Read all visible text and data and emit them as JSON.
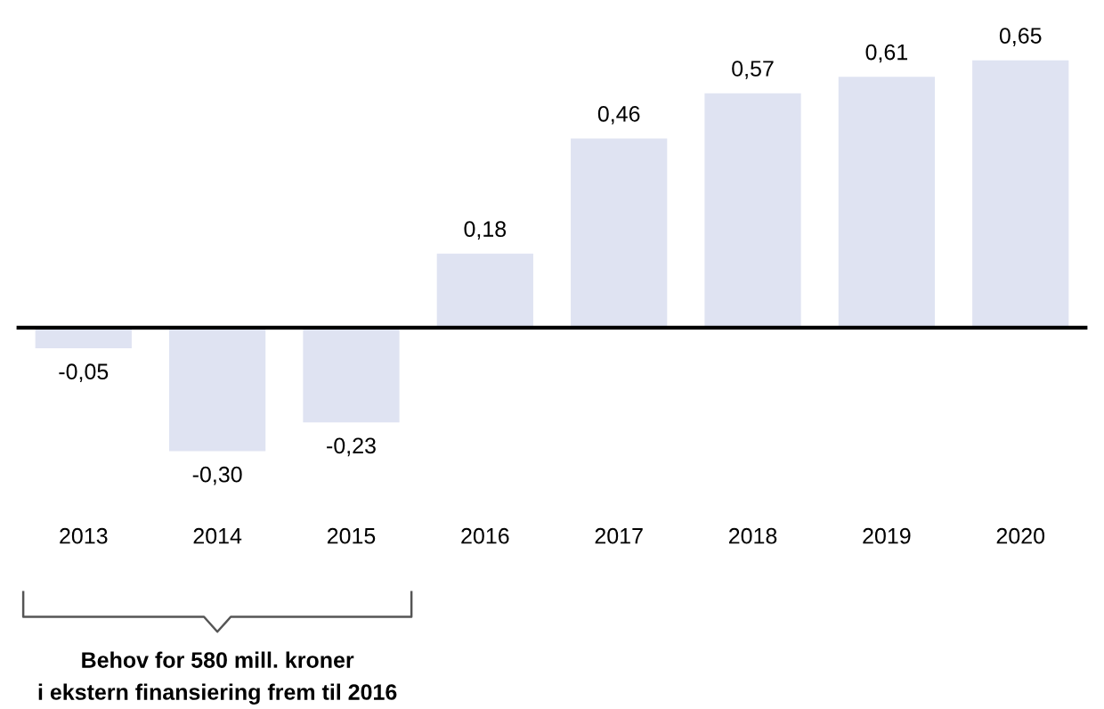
{
  "chart_data": {
    "type": "bar",
    "categories": [
      "2013",
      "2014",
      "2015",
      "2016",
      "2017",
      "2018",
      "2019",
      "2020"
    ],
    "values": [
      -0.05,
      -0.3,
      -0.23,
      0.18,
      0.46,
      0.57,
      0.61,
      0.65
    ],
    "value_labels": [
      "-0,05",
      "-0,30",
      "-0,23",
      "0,18",
      "0,46",
      "0,57",
      "0,61",
      "0,65"
    ],
    "color": "#dfe3f2",
    "grid": false,
    "annotations": [
      "Behov for 580 mill. kroner\ni ekstern finansiering frem til 2016"
    ]
  }
}
